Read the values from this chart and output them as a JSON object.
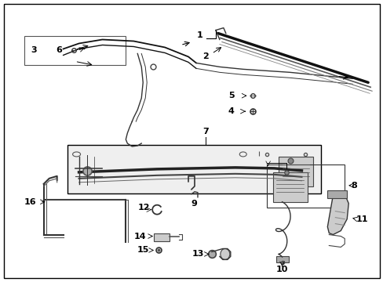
{
  "background_color": "#ffffff",
  "border_color": "#000000",
  "fig_width": 4.89,
  "fig_height": 3.6,
  "dpi": 100,
  "label_fontsize": 8,
  "lc": "#000000",
  "tc": "#000000"
}
